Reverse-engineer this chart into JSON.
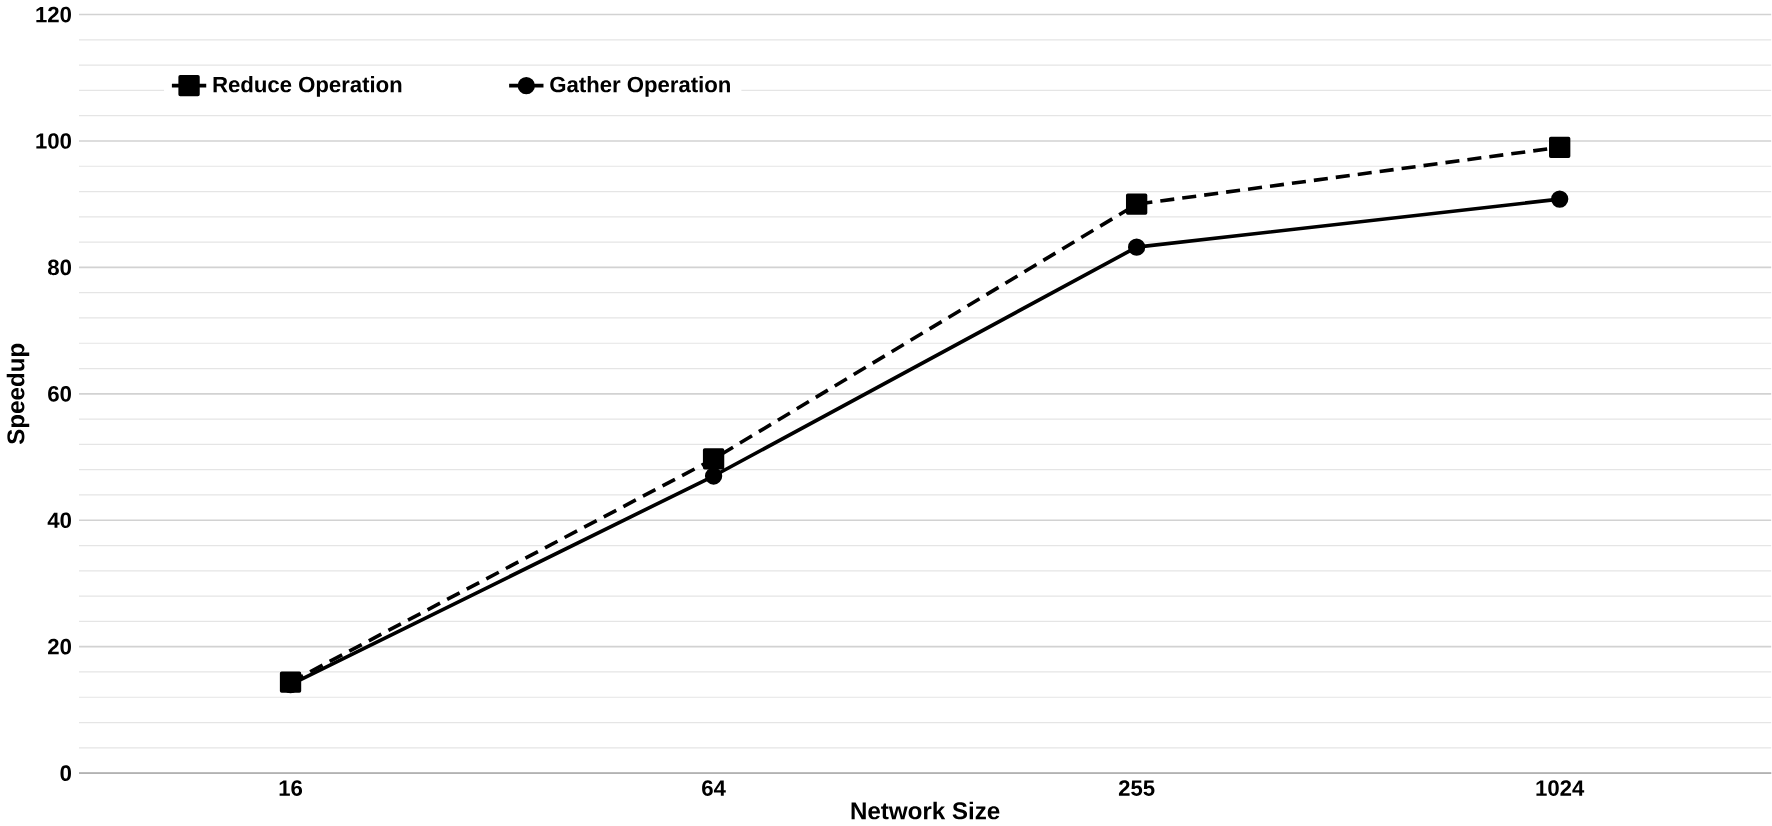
{
  "chart_data": {
    "type": "line",
    "xlabel": "Network Size",
    "ylabel": "Speedup",
    "categories": [
      "16",
      "64",
      "255",
      "1024"
    ],
    "series": [
      {
        "name": "Reduce Operation",
        "color": "#000000",
        "values": [
          14.4,
          49.7,
          90.0,
          99.0
        ],
        "marker": "square",
        "line_style": "dashed"
      },
      {
        "name": "Gather Operation",
        "color": "#000000",
        "values": [
          14.0,
          47.0,
          83.2,
          90.8
        ],
        "marker": "circle",
        "line_style": "solid"
      }
    ],
    "ylim": [
      0,
      120
    ],
    "yticks": [
      0,
      20,
      40,
      60,
      80,
      100,
      120
    ],
    "grid": "y",
    "legend": "top left"
  }
}
